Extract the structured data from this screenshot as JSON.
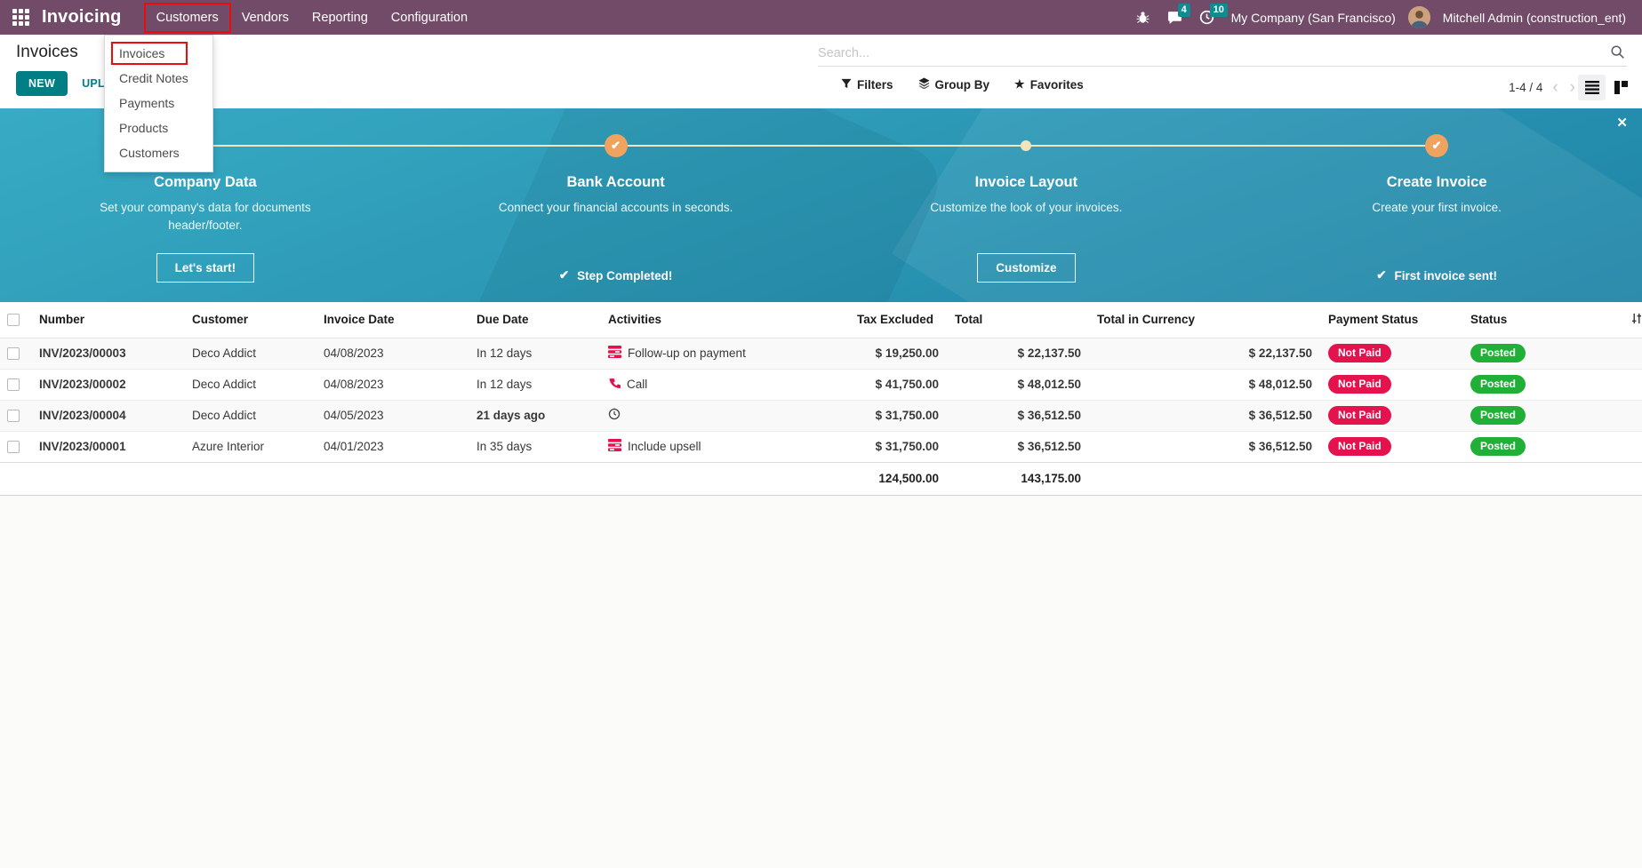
{
  "colors": {
    "topbar_bg": "#714B67",
    "accent_teal": "#017E84",
    "icon_badge": "#0E8C92",
    "banner_grad_top": "#38ABC4",
    "banner_grad_bottom": "#1E83A6",
    "banner_line": "#F2E4BB",
    "marker_orange": "#F0A35E",
    "not_paid_bg": "#E4124D",
    "posted_bg": "#20B038",
    "overdue_text": "#E11D48",
    "annotation_red": "#EC0B0B",
    "activity_icon_red": "#E4124D"
  },
  "icons": {
    "close": "✕",
    "check": "✔",
    "star": "★",
    "chevron_left": "‹",
    "chevron_right": "›"
  },
  "topbar": {
    "app_name": "Invoicing",
    "menus": [
      {
        "label": "Customers",
        "highlighted": true
      },
      {
        "label": "Vendors",
        "highlighted": false
      },
      {
        "label": "Reporting",
        "highlighted": false
      },
      {
        "label": "Configuration",
        "highlighted": false
      }
    ],
    "messages_badge": "4",
    "activities_badge": "10",
    "company": "My Company (San Francisco)",
    "user": "Mitchell Admin (construction_ent)"
  },
  "dropdown": {
    "items": [
      {
        "label": "Invoices",
        "highlighted": true
      },
      {
        "label": "Credit Notes",
        "highlighted": false
      },
      {
        "label": "Payments",
        "highlighted": false
      },
      {
        "label": "Products",
        "highlighted": false
      },
      {
        "label": "Customers",
        "highlighted": false
      }
    ]
  },
  "control_panel": {
    "title": "Invoices",
    "new_button": "NEW",
    "upload_button": "UPLOAD",
    "search_placeholder": "Search...",
    "filters_label": "Filters",
    "group_by_label": "Group By",
    "favorites_label": "Favorites",
    "pager": "1-4 / 4"
  },
  "banner": {
    "steps": [
      {
        "title": "Company Data",
        "description": "Set your company's data for documents header/footer.",
        "action": "Let's start!",
        "action_type": "button",
        "marker": "dot"
      },
      {
        "title": "Bank Account",
        "description": "Connect your financial accounts in seconds.",
        "action": "Step Completed!",
        "action_type": "done",
        "marker": "check"
      },
      {
        "title": "Invoice Layout",
        "description": "Customize the look of your invoices.",
        "action": "Customize",
        "action_type": "button",
        "marker": "dot"
      },
      {
        "title": "Create Invoice",
        "description": "Create your first invoice.",
        "action": "First invoice sent!",
        "action_type": "done",
        "marker": "check"
      }
    ]
  },
  "table": {
    "columns": [
      "Number",
      "Customer",
      "Invoice Date",
      "Due Date",
      "Activities",
      "Tax Excluded",
      "Total",
      "Total in Currency",
      "Payment Status",
      "Status"
    ],
    "rows": [
      {
        "number": "INV/2023/00003",
        "customer": "Deco Addict",
        "invoice_date": "04/08/2023",
        "due_date": "In 12 days",
        "due_overdue": false,
        "activity_icon": "list",
        "activity": "Follow-up on payment",
        "tax_excluded": "$ 19,250.00",
        "total": "$ 22,137.50",
        "total_currency": "$ 22,137.50",
        "payment_status": "Not Paid",
        "status": "Posted"
      },
      {
        "number": "INV/2023/00002",
        "customer": "Deco Addict",
        "invoice_date": "04/08/2023",
        "due_date": "In 12 days",
        "due_overdue": false,
        "activity_icon": "phone",
        "activity": "Call",
        "tax_excluded": "$ 41,750.00",
        "total": "$ 48,012.50",
        "total_currency": "$ 48,012.50",
        "payment_status": "Not Paid",
        "status": "Posted"
      },
      {
        "number": "INV/2023/00004",
        "customer": "Deco Addict",
        "invoice_date": "04/05/2023",
        "due_date": "21 days ago",
        "due_overdue": true,
        "activity_icon": "clock",
        "activity": "",
        "tax_excluded": "$ 31,750.00",
        "total": "$ 36,512.50",
        "total_currency": "$ 36,512.50",
        "payment_status": "Not Paid",
        "status": "Posted"
      },
      {
        "number": "INV/2023/00001",
        "customer": "Azure Interior",
        "invoice_date": "04/01/2023",
        "due_date": "In 35 days",
        "due_overdue": false,
        "activity_icon": "list",
        "activity": "Include upsell",
        "tax_excluded": "$ 31,750.00",
        "total": "$ 36,512.50",
        "total_currency": "$ 36,512.50",
        "payment_status": "Not Paid",
        "status": "Posted"
      }
    ],
    "totals": {
      "tax_excluded": "124,500.00",
      "total": "143,175.00"
    }
  }
}
